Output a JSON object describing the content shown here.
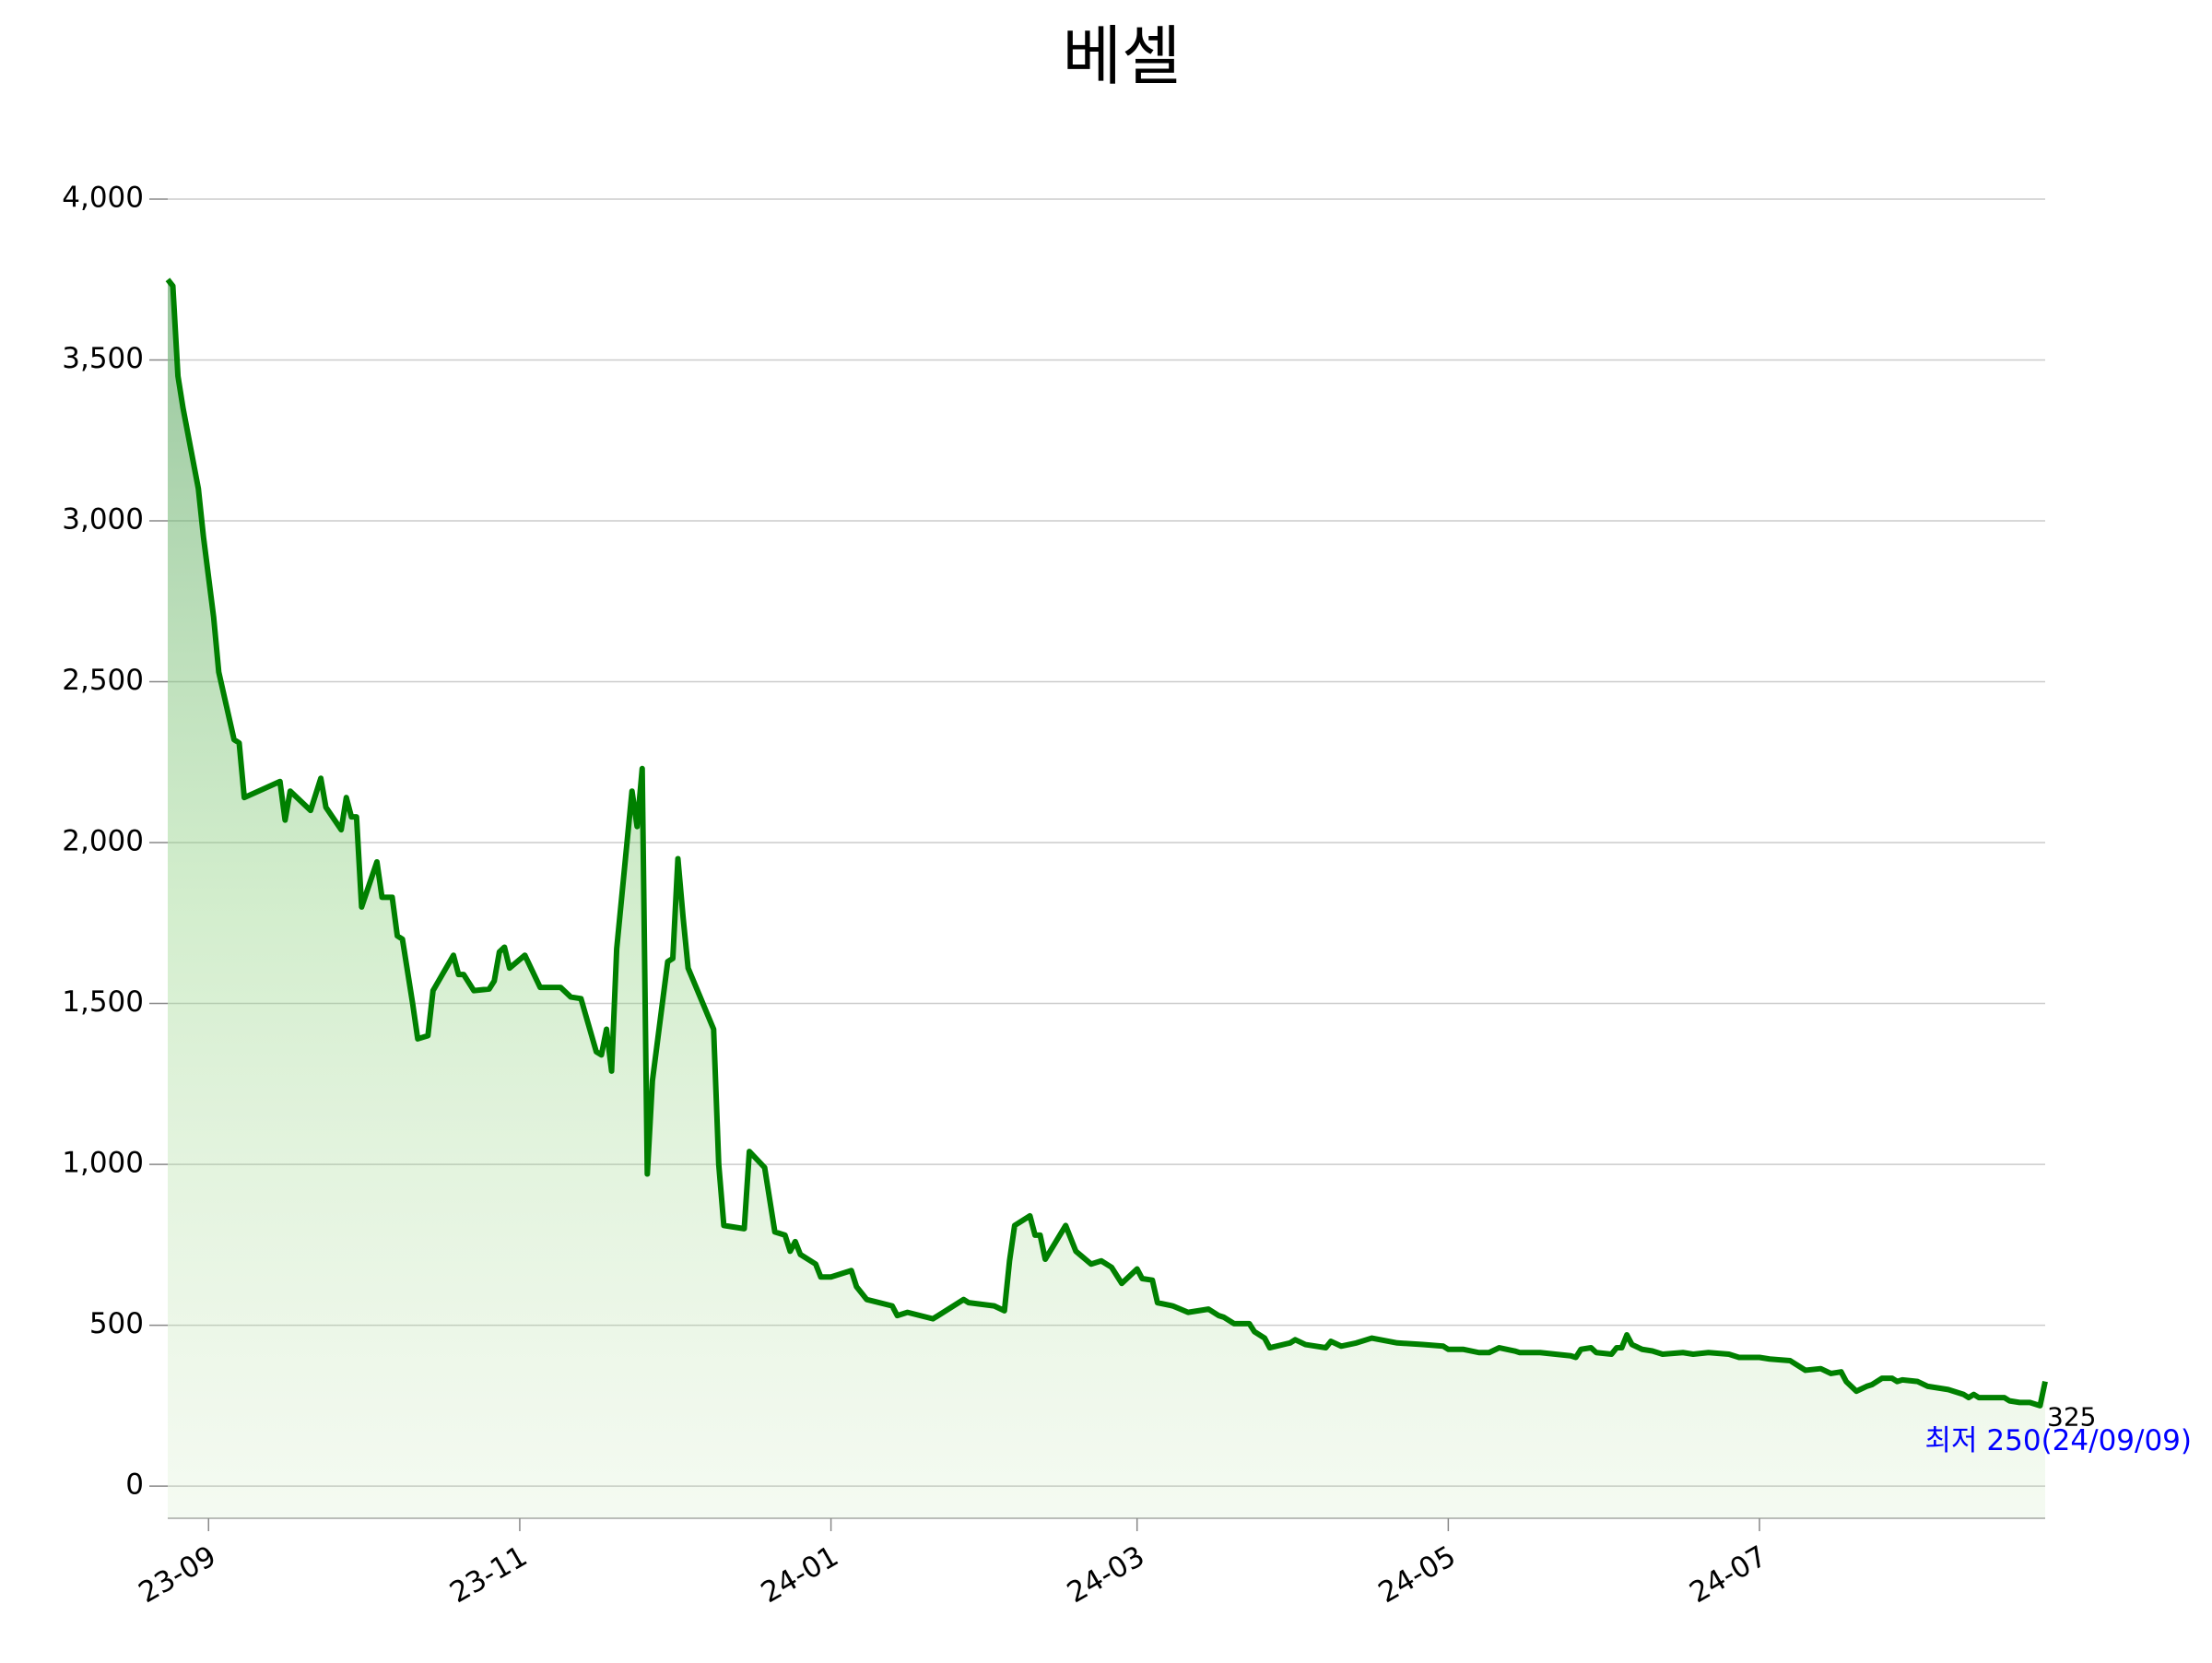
{
  "chart_data": {
    "type": "line",
    "title": "베셀",
    "color": "green",
    "grid": true,
    "x": [
      "2023-08-24",
      "2023-08-25",
      "2023-08-26",
      "2023-08-27",
      "2023-08-30",
      "2023-08-31",
      "2023-09-02",
      "2023-09-03",
      "2023-09-06",
      "2023-09-07",
      "2023-09-08",
      "2023-09-15",
      "2023-09-16",
      "2023-09-17",
      "2023-09-21",
      "2023-09-23",
      "2023-09-24",
      "2023-09-27",
      "2023-09-28",
      "2023-09-29",
      "2023-09-30",
      "2023-10-01",
      "2023-10-04",
      "2023-10-05",
      "2023-10-07",
      "2023-10-08",
      "2023-10-09",
      "2023-10-11",
      "2023-10-12",
      "2023-10-14",
      "2023-10-15",
      "2023-10-19",
      "2023-10-20",
      "2023-10-21",
      "2023-10-23",
      "2023-10-26",
      "2023-10-27",
      "2023-10-28",
      "2023-10-29",
      "2023-10-30",
      "2023-11-02",
      "2023-11-05",
      "2023-11-09",
      "2023-11-11",
      "2023-11-13",
      "2023-11-16",
      "2023-11-17",
      "2023-11-18",
      "2023-11-19",
      "2023-11-20",
      "2023-11-23",
      "2023-11-24",
      "2023-11-25",
      "2023-11-26",
      "2023-11-27",
      "2023-11-30",
      "2023-12-01",
      "2023-12-02",
      "2023-12-03",
      "2023-12-04",
      "2023-12-09",
      "2023-12-10",
      "2023-12-11",
      "2023-12-15",
      "2023-12-16",
      "2023-12-19",
      "2023-12-21",
      "2023-12-23",
      "2023-12-24",
      "2023-12-25",
      "2023-12-26",
      "2023-12-29",
      "2023-12-30",
      "2024-01-01",
      "2024-01-05",
      "2024-01-06",
      "2024-01-08",
      "2024-01-13",
      "2024-01-14",
      "2024-01-16",
      "2024-01-21",
      "2024-01-27",
      "2024-01-28",
      "2024-02-02",
      "2024-02-04",
      "2024-02-05",
      "2024-02-06",
      "2024-02-09",
      "2024-02-10",
      "2024-02-11",
      "2024-02-12",
      "2024-02-16",
      "2024-02-18",
      "2024-02-21",
      "2024-02-23",
      "2024-02-25",
      "2024-02-27",
      "2024-03-01",
      "2024-03-02",
      "2024-03-04",
      "2024-03-05",
      "2024-03-08",
      "2024-03-11",
      "2024-03-15",
      "2024-03-17",
      "2024-03-18",
      "2024-03-20",
      "2024-03-23",
      "2024-03-24",
      "2024-03-26",
      "2024-03-27",
      "2024-03-31",
      "2024-04-01",
      "2024-04-03",
      "2024-04-07",
      "2024-04-08",
      "2024-04-10",
      "2024-04-13",
      "2024-04-16",
      "2024-04-21",
      "2024-04-26",
      "2024-04-30",
      "2024-05-01",
      "2024-05-04",
      "2024-05-07",
      "2024-05-09",
      "2024-05-11",
      "2024-05-14",
      "2024-05-15",
      "2024-05-19",
      "2024-05-22",
      "2024-05-25",
      "2024-05-26",
      "2024-05-27",
      "2024-05-29",
      "2024-05-30",
      "2024-06-02",
      "2024-06-03",
      "2024-06-04",
      "2024-06-05",
      "2024-06-06",
      "2024-06-08",
      "2024-06-10",
      "2024-06-12",
      "2024-06-16",
      "2024-06-18",
      "2024-06-21",
      "2024-06-25",
      "2024-06-27",
      "2024-07-01",
      "2024-07-03",
      "2024-07-07",
      "2024-07-10",
      "2024-07-13",
      "2024-07-15",
      "2024-07-17",
      "2024-07-18",
      "2024-07-20",
      "2024-07-22",
      "2024-07-23",
      "2024-07-25",
      "2024-07-27",
      "2024-07-28",
      "2024-07-29",
      "2024-08-01",
      "2024-08-03",
      "2024-08-05",
      "2024-08-07",
      "2024-08-10",
      "2024-08-11",
      "2024-08-12",
      "2024-08-13",
      "2024-08-18",
      "2024-08-19",
      "2024-08-21",
      "2024-08-23",
      "2024-08-24",
      "2024-08-25",
      "2024-08-26"
    ],
    "values": [
      3750,
      3730,
      3450,
      3350,
      3100,
      2950,
      2700,
      2530,
      2320,
      2310,
      2140,
      2190,
      2070,
      2160,
      2100,
      2200,
      2110,
      2040,
      2140,
      2080,
      2080,
      1800,
      1940,
      1830,
      1830,
      1710,
      1700,
      1500,
      1390,
      1400,
      1540,
      1650,
      1590,
      1590,
      1540,
      1545,
      1570,
      1660,
      1675,
      1610,
      1650,
      1550,
      1550,
      1520,
      1515,
      1350,
      1340,
      1420,
      1290,
      1670,
      2160,
      2050,
      2230,
      970,
      1260,
      1630,
      1640,
      1950,
      1770,
      1610,
      1420,
      1000,
      810,
      800,
      1040,
      990,
      790,
      780,
      730,
      760,
      720,
      690,
      650,
      650,
      670,
      620,
      580,
      560,
      530,
      540,
      520,
      580,
      570,
      560,
      545,
      700,
      810,
      840,
      780,
      780,
      705,
      810,
      730,
      690,
      700,
      680,
      630,
      675,
      645,
      640,
      570,
      560,
      540,
      550,
      530,
      525,
      505,
      505,
      480,
      460,
      430,
      445,
      455,
      440,
      430,
      450,
      435,
      445,
      460,
      445,
      440,
      435,
      425,
      425,
      415,
      415,
      430,
      420,
      415,
      415,
      410,
      405,
      400,
      425,
      430,
      415,
      410,
      430,
      430,
      470,
      440,
      425,
      420,
      410,
      415,
      410,
      415,
      410,
      400,
      400,
      395,
      390,
      360,
      365,
      350,
      355,
      325,
      295,
      310,
      315,
      335,
      335,
      325,
      330,
      325,
      310,
      305,
      300,
      285,
      275,
      285,
      275,
      275,
      265,
      260,
      260,
      255,
      250,
      325
    ],
    "xlim": [
      "2023-08-24",
      "2024-08-26"
    ],
    "xticks": [
      {
        "value": "2023-09-01",
        "label": "23-09"
      },
      {
        "value": "2023-11-01",
        "label": "23-11"
      },
      {
        "value": "2024-01-01",
        "label": "24-01"
      },
      {
        "value": "2024-03-01",
        "label": "24-03"
      },
      {
        "value": "2024-05-01",
        "label": "24-05"
      },
      {
        "value": "2024-07-01",
        "label": "24-07"
      }
    ],
    "ylim": [
      -100,
      4000
    ],
    "yticks": [
      0,
      {
        "value": 500,
        "label": "500"
      },
      {
        "value": 1000,
        "label": "1,000"
      },
      {
        "value": 1500,
        "label": "1,500"
      },
      {
        "value": 2000,
        "label": "2,000"
      },
      {
        "value": 2500,
        "label": "2,500"
      },
      {
        "value": 3000,
        "label": "3,000"
      },
      {
        "value": 3500,
        "label": "3,500"
      },
      {
        "value": 4000,
        "label": "4,000"
      }
    ],
    "annotations": [
      "325",
      "최저 250(24/09/09)"
    ]
  }
}
